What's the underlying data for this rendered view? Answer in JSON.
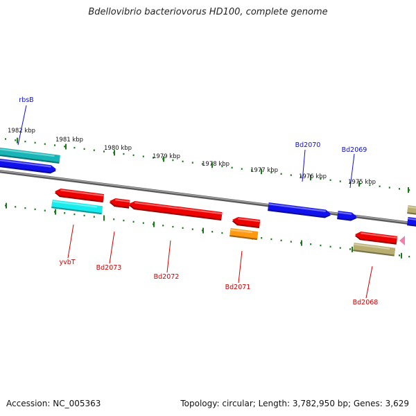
{
  "title": "Bdellovibrio bacteriovorus HD100, complete genome",
  "accession_label": "Accession: NC_005363",
  "summary_label": "Topology: circular; Length: 3,782,950 bp; Genes: 3,629",
  "ruler_labels": [
    "1982 kbp",
    "1981 kbp",
    "1980 kbp",
    "1979 kbp",
    "1978 kbp",
    "1977 kbp",
    "1976 kbp",
    "1975 kbp"
  ],
  "forward_gene_labels": [
    "rbsB",
    "Bd2070",
    "Bd2069"
  ],
  "reverse_gene_labels": [
    "yvbT",
    "Bd2073",
    "Bd2072",
    "Bd2071",
    "Bd2068"
  ],
  "colors": {
    "forward_label": "#1010cc",
    "reverse_label": "#cc0000",
    "tick": "#1a7a1a",
    "backbone": "#808080",
    "red_gene": "#ee0000",
    "blue_gene": "#1111ee",
    "teal_gene": "#17b5b5",
    "cyan_gene": "#19ecec",
    "orange_gene": "#ff9910",
    "khaki_gene": "#b8ae70",
    "pink_gene": "#f080b0"
  }
}
